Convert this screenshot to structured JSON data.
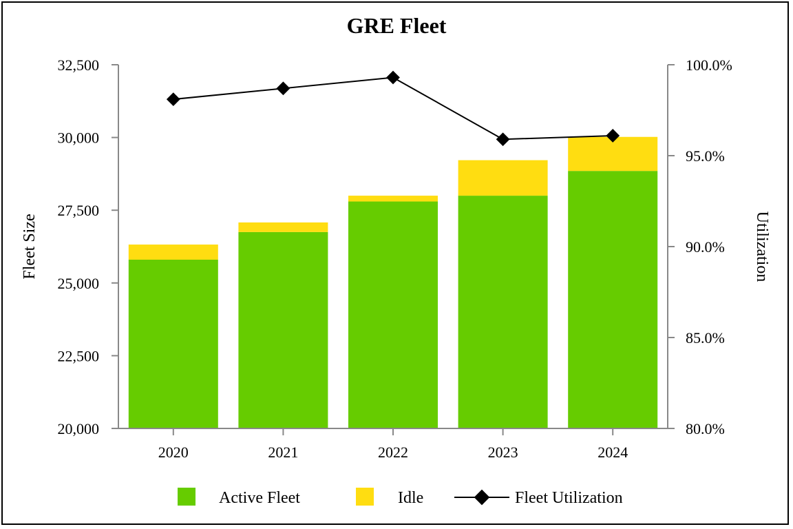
{
  "chart_data": {
    "type": "bar",
    "title": "GRE Fleet",
    "xlabel": "",
    "ylabel": "Fleet Size",
    "y2label": "Utilization",
    "categories": [
      "2020",
      "2021",
      "2022",
      "2023",
      "2024"
    ],
    "ylim": [
      20000,
      32500
    ],
    "y2lim": [
      80.0,
      100.0
    ],
    "yticks": [
      "20,000",
      "22,500",
      "25,000",
      "27,500",
      "30,000",
      "32,500"
    ],
    "y2ticks": [
      "80.0%",
      "85.0%",
      "90.0%",
      "95.0%",
      "100.0%"
    ],
    "stacked": true,
    "series": [
      {
        "name": "Active Fleet",
        "type": "bar",
        "color": "#66cc00",
        "values": [
          25800,
          26750,
          27800,
          28000,
          28850
        ]
      },
      {
        "name": "Idle",
        "type": "bar",
        "color": "#ffdd11",
        "values": [
          520,
          330,
          200,
          1220,
          1170
        ]
      },
      {
        "name": "Fleet Utilization",
        "type": "line",
        "axis": "right",
        "color": "#000000",
        "marker": "diamond",
        "values": [
          98.1,
          98.7,
          99.3,
          95.9,
          96.1
        ]
      }
    ],
    "grid": false,
    "legend_position": "bottom"
  }
}
